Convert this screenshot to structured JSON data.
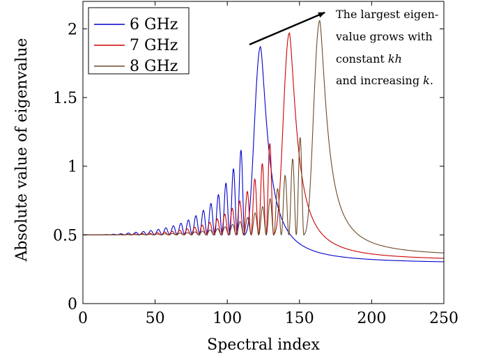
{
  "chart_data": {
    "type": "line",
    "xlabel": "Spectral index",
    "ylabel": "Absolute value of eigenvalue",
    "xlim": [
      0,
      250
    ],
    "ylim": [
      0,
      2.2
    ],
    "x_ticks": [
      "0",
      "50",
      "100",
      "150",
      "200",
      "250"
    ],
    "y_ticks": [
      "0",
      "0.5",
      "1",
      "1.5",
      "2"
    ],
    "grid": false,
    "legend": "top-left",
    "series": [
      {
        "name": "6 GHz",
        "color": "#0000cc",
        "peak_x": 123,
        "peak_y": 1.87,
        "end_y": 0.29,
        "local_peaks": [
          [
            102,
            0.86
          ],
          [
            107,
            0.95
          ],
          [
            112,
            1.13
          ],
          [
            123,
            1.87
          ]
        ]
      },
      {
        "name": "7 GHz",
        "color": "#cc0000",
        "peak_x": 143,
        "peak_y": 1.97,
        "end_y": 0.31,
        "local_peaks": [
          [
            122,
            0.82
          ],
          [
            128,
            0.89
          ],
          [
            133,
            1.18
          ],
          [
            143,
            1.97
          ]
        ]
      },
      {
        "name": "8 GHz",
        "color": "#6b4a2a",
        "peak_x": 164,
        "peak_y": 2.06,
        "end_y": 0.34,
        "local_peaks": [
          [
            143,
            0.96
          ],
          [
            148,
            1.03
          ],
          [
            153,
            1.24
          ],
          [
            164,
            2.06
          ]
        ]
      }
    ],
    "annotation": {
      "line1": "The largest eigen-",
      "line2": "value grows with",
      "line3_prefix": "constant ",
      "line3_var": "kh",
      "line4_prefix": "and increasing ",
      "line4_var": "k",
      "line4_suffix": "."
    }
  }
}
